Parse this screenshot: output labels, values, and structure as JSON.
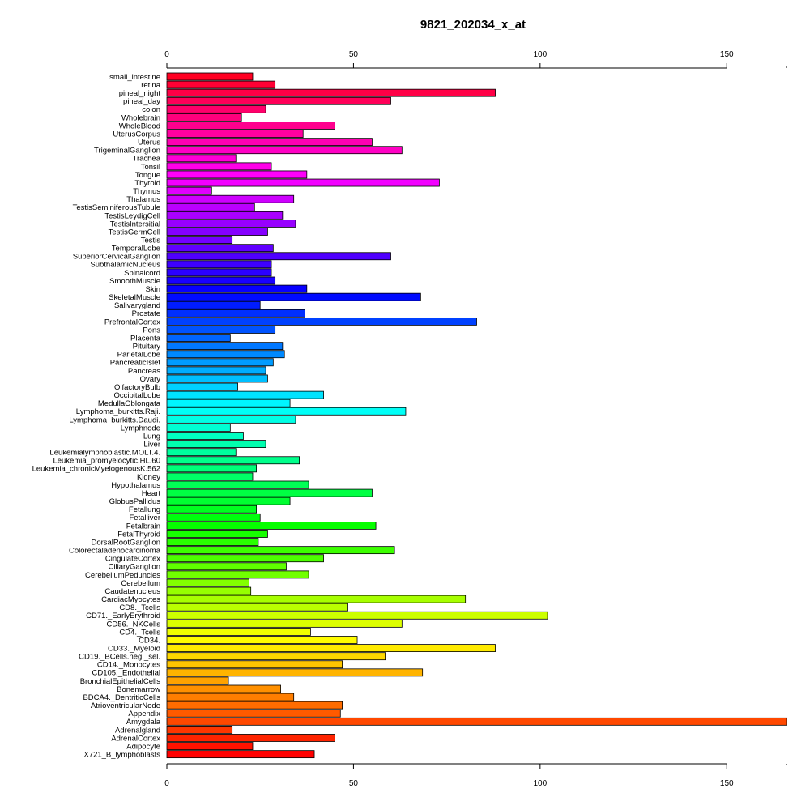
{
  "chart_data": {
    "type": "bar",
    "orientation": "horizontal",
    "title": "9821_202034_x_at",
    "xlabel": "",
    "ylabel": "",
    "xlim": [
      0,
      166
    ],
    "x_ticks": [
      0,
      50,
      100,
      150
    ],
    "grid": false,
    "legend": "none",
    "categories": [
      "small_intestine",
      "retina",
      "pineal_night",
      "pineal_day",
      "colon",
      "Wholebrain",
      "WholeBlood",
      "UterusCorpus",
      "Uterus",
      "TrigeminalGanglion",
      "Trachea",
      "Tonsil",
      "Tongue",
      "Thyroid",
      "Thymus",
      "Thalamus",
      "TestisSeminiferousTubule",
      "TestisLeydigCell",
      "TestisIntersitial",
      "TestisGermCell",
      "Testis",
      "TemporalLobe",
      "SuperiorCervicalGanglion",
      "SubthalamicNucleus",
      "Spinalcord",
      "SmoothMuscle",
      "Skin",
      "SkeletalMuscle",
      "Salivarygland",
      "Prostate",
      "PrefrontalCortex",
      "Pons",
      "Placenta",
      "Pituitary",
      "ParietalLobe",
      "PancreaticIslet",
      "Pancreas",
      "Ovary",
      "OlfactoryBulb",
      "OccipitalLobe",
      "MedullaOblongata",
      "Lymphoma_burkitts.Raji.",
      "Lymphoma_burkitts.Daudi.",
      "Lymphnode",
      "Lung",
      "Liver",
      "Leukemialymphoblastic.MOLT.4.",
      "Leukemia_promyelocytic.HL.60",
      "Leukemia_chronicMyelogenousK.562",
      "Kidney",
      "Hypothalamus",
      "Heart",
      "GlobusPallidus",
      "Fetallung",
      "Fetalliver",
      "Fetalbrain",
      "FetalThyroid",
      "DorsalRootGanglion",
      "Colorectaladenocarcinoma",
      "CingulateCortex",
      "CiliaryGanglion",
      "CerebellumPeduncles",
      "Cerebellum",
      "Caudatenucleus",
      "CardiacMyocytes",
      "CD8._Tcells",
      "CD71._EarlyErythroid",
      "CD56._NKCells",
      "CD4._Tcells",
      "CD34.",
      "CD33._Myeloid",
      "CD19._BCells.neg._sel.",
      "CD14._Monocytes",
      "CD105._Endothelial",
      "BronchialEpithelialCells",
      "Bonemarrow",
      "BDCA4._DentriticCells",
      "AtrioventricularNode",
      "Appendix",
      "Amygdala",
      "Adrenalgland",
      "AdrenalCortex",
      "Adipocyte",
      "X721_B_lymphoblasts"
    ],
    "values": [
      23,
      29,
      88,
      60,
      26.5,
      20,
      45,
      36.5,
      55,
      63,
      18.5,
      28,
      37.5,
      73,
      12,
      34,
      23.5,
      31,
      34.5,
      27,
      17.5,
      28.5,
      60,
      28,
      28,
      29,
      37.5,
      68,
      25,
      37,
      83,
      29,
      17,
      31,
      31.5,
      28.5,
      26.5,
      27,
      19,
      42,
      33,
      64,
      34.5,
      17,
      20.5,
      26.5,
      18.5,
      35.5,
      24,
      23,
      38,
      55,
      33,
      24,
      25,
      56,
      27,
      24.5,
      61,
      42,
      32,
      38,
      22,
      22.5,
      80,
      48.5,
      102,
      63,
      38.5,
      51,
      88,
      58.5,
      47,
      68.5,
      16.5,
      30.5,
      34,
      47,
      46.5,
      166,
      17.5,
      45,
      23,
      39.5
    ]
  }
}
